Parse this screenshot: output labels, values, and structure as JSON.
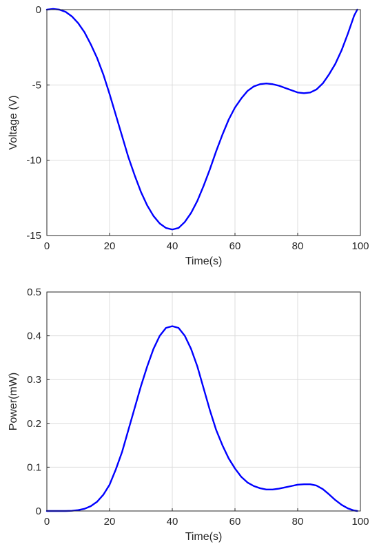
{
  "chart_data": [
    {
      "type": "line",
      "title": "",
      "xlabel": "Time(s)",
      "ylabel": "Voltage (V)",
      "xlim": [
        0,
        100
      ],
      "ylim": [
        -15,
        0
      ],
      "xticks": [
        0,
        20,
        40,
        60,
        80,
        100
      ],
      "yticks": [
        -15,
        -10,
        -5,
        0
      ],
      "grid": true,
      "series": [
        {
          "color": "#0000ff",
          "x": [
            0,
            2,
            4,
            6,
            8,
            10,
            12,
            14,
            16,
            18,
            20,
            22,
            24,
            26,
            28,
            30,
            32,
            34,
            36,
            38,
            40,
            42,
            44,
            46,
            48,
            50,
            52,
            54,
            56,
            58,
            60,
            62,
            64,
            66,
            68,
            70,
            72,
            74,
            76,
            78,
            80,
            82,
            84,
            86,
            88,
            90,
            92,
            94,
            96,
            98,
            99
          ],
          "y": [
            0,
            0.05,
            0.0,
            -0.15,
            -0.45,
            -0.9,
            -1.5,
            -2.3,
            -3.2,
            -4.3,
            -5.6,
            -7.0,
            -8.4,
            -9.8,
            -11.0,
            -12.1,
            -13.0,
            -13.7,
            -14.2,
            -14.5,
            -14.6,
            -14.5,
            -14.1,
            -13.5,
            -12.7,
            -11.7,
            -10.6,
            -9.4,
            -8.3,
            -7.3,
            -6.5,
            -5.9,
            -5.4,
            -5.1,
            -4.95,
            -4.9,
            -4.95,
            -5.05,
            -5.2,
            -5.35,
            -5.5,
            -5.55,
            -5.5,
            -5.3,
            -4.9,
            -4.3,
            -3.6,
            -2.7,
            -1.6,
            -0.4,
            0
          ]
        }
      ]
    },
    {
      "type": "line",
      "title": "",
      "xlabel": "Time(s)",
      "ylabel": "Power(mW)",
      "xlim": [
        0,
        100
      ],
      "ylim": [
        0,
        0.5
      ],
      "xticks": [
        0,
        20,
        40,
        60,
        80,
        100
      ],
      "yticks": [
        0,
        0.1,
        0.2,
        0.3,
        0.4,
        0.5
      ],
      "grid": true,
      "series": [
        {
          "color": "#0000ff",
          "x": [
            0,
            2,
            4,
            6,
            8,
            10,
            12,
            14,
            16,
            18,
            20,
            22,
            24,
            26,
            28,
            30,
            32,
            34,
            36,
            38,
            40,
            42,
            44,
            46,
            48,
            50,
            52,
            54,
            56,
            58,
            60,
            62,
            64,
            66,
            68,
            70,
            72,
            74,
            76,
            78,
            80,
            82,
            84,
            86,
            88,
            90,
            92,
            94,
            96,
            98,
            99
          ],
          "y": [
            0,
            0,
            0,
            0,
            0.0005,
            0.002,
            0.005,
            0.011,
            0.021,
            0.037,
            0.06,
            0.095,
            0.135,
            0.185,
            0.235,
            0.285,
            0.33,
            0.37,
            0.4,
            0.418,
            0.422,
            0.418,
            0.4,
            0.37,
            0.33,
            0.28,
            0.23,
            0.185,
            0.15,
            0.12,
            0.097,
            0.078,
            0.065,
            0.057,
            0.052,
            0.049,
            0.049,
            0.051,
            0.054,
            0.057,
            0.06,
            0.061,
            0.061,
            0.058,
            0.05,
            0.038,
            0.025,
            0.014,
            0.006,
            0.001,
            0
          ]
        }
      ]
    }
  ]
}
